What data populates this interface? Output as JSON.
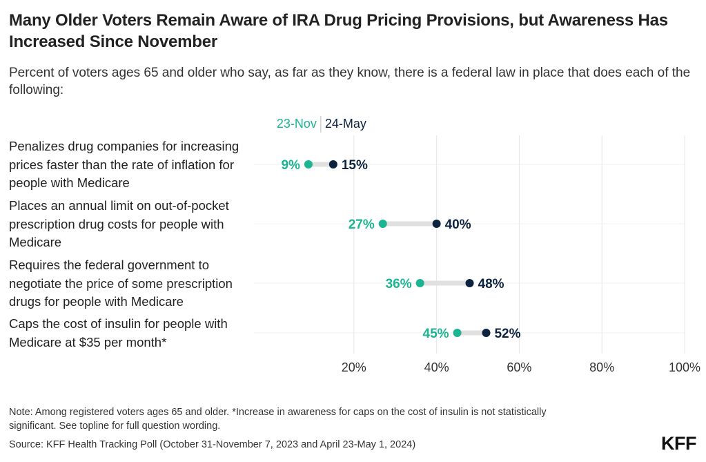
{
  "title": "Many Older Voters Remain Aware of IRA Drug Pricing Provisions, but Awareness Has Increased Since November",
  "subtitle": "Percent of voters ages 65 and older who say, as far as they know, there is a federal law in place that does each of the following:",
  "colors": {
    "nov": "#1bb592",
    "may": "#0c2340",
    "connector": "#e0e0e0",
    "grid": "#e5e5e5"
  },
  "chart_data": {
    "type": "dumbbell",
    "series": [
      {
        "name": "23-Nov",
        "values": [
          9,
          27,
          36,
          45
        ]
      },
      {
        "name": "24-May",
        "values": [
          15,
          40,
          48,
          52
        ]
      }
    ],
    "categories": [
      "Penalizes drug companies for increasing prices faster than the rate of inflation for people with Medicare",
      "Places an annual limit on out-of-pocket prescription drug costs for people with Medicare",
      "Requires the federal government to negotiate the price of some prescription drugs for people with Medicare",
      "Caps the cost of insulin for people with Medicare at $35 per month*"
    ],
    "category_lines": [
      [
        "Penalizes drug companies for increasing",
        "prices faster than the rate of inflation for",
        "people with Medicare"
      ],
      [
        "Places an annual limit on out-of-pocket",
        "prescription drug costs for people with",
        "Medicare"
      ],
      [
        "Requires the federal government to",
        "negotiate the price of some prescription",
        "drugs for people with Medicare"
      ],
      [
        "Caps the cost of insulin for people with",
        "Medicare at $35 per month*"
      ]
    ],
    "nov_labels": [
      "9%",
      "27%",
      "36%",
      "45%"
    ],
    "may_labels": [
      "15%",
      "40%",
      "48%",
      "52%"
    ],
    "xlim": [
      0,
      100
    ],
    "x_ticks": [
      20,
      40,
      60,
      80,
      100
    ],
    "x_tick_labels": [
      "20%",
      "40%",
      "60%",
      "80%",
      "100%"
    ],
    "legend": {
      "position": "top"
    }
  },
  "footer": {
    "note_line1": "Note: Among registered voters ages 65 and older. *Increase in awareness for caps on the cost of insulin is not statistically",
    "note_line2": "significant. See topline for full question wording.",
    "source": "Source: KFF Health Tracking Poll (October 31-November 7, 2023 and April 23-May 1, 2024)",
    "logo": "KFF"
  }
}
